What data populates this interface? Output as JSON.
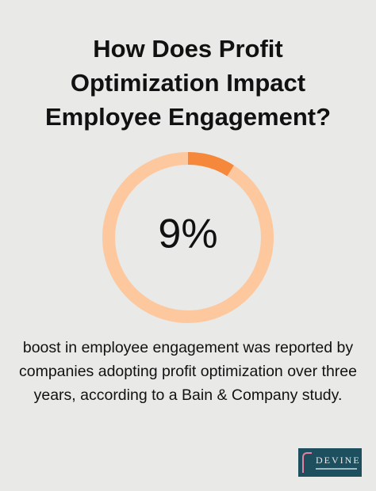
{
  "chart_data": {
    "type": "donut",
    "title": "How Does Profit Optimization Impact Employee Engagement?",
    "values": [
      9
    ],
    "value_labels": [
      "9%"
    ],
    "color": "#f5883a",
    "track_color": "#fdc89e",
    "caption": "boost in employee engagement was reported by companies adopting profit optimization over three years, according to a Bain & Company study."
  },
  "logo": {
    "name": "DEVINE"
  }
}
